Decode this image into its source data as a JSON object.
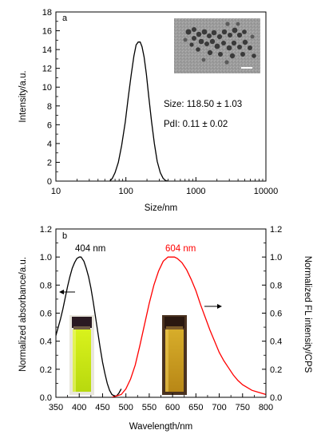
{
  "chart_data": [
    {
      "type": "line",
      "panel_label": "a",
      "xlabel": "Size/nm",
      "ylabel": "Intensity/a.u.",
      "x_scale": "log",
      "xlim": [
        10,
        10000
      ],
      "ylim": [
        0,
        18
      ],
      "x_ticks": [
        {
          "value": 10,
          "label": "10"
        },
        {
          "value": 100,
          "label": "100"
        },
        {
          "value": 1000,
          "label": "1000"
        },
        {
          "value": 10000,
          "label": "10000"
        }
      ],
      "y_ticks": [
        {
          "value": 0,
          "label": "0"
        },
        {
          "value": 2,
          "label": "2"
        },
        {
          "value": 4,
          "label": "4"
        },
        {
          "value": 6,
          "label": "6"
        },
        {
          "value": 8,
          "label": "8"
        },
        {
          "value": 10,
          "label": "10"
        },
        {
          "value": 12,
          "label": "12"
        },
        {
          "value": 14,
          "label": "14"
        },
        {
          "value": 16,
          "label": "16"
        },
        {
          "value": 18,
          "label": "18"
        }
      ],
      "series": [
        {
          "color": "#000000",
          "x": [
            59,
            64,
            70,
            78,
            87,
            98,
            108,
            119,
            130,
            140,
            150,
            160,
            170,
            182,
            196,
            212,
            232,
            255,
            280,
            310,
            340,
            370,
            400
          ],
          "y": [
            0,
            0.3,
            0.9,
            2.0,
            3.8,
            6.3,
            8.9,
            11.3,
            13.3,
            14.5,
            14.8,
            14.8,
            14.3,
            13.2,
            11.4,
            9.0,
            6.4,
            4.0,
            2.1,
            0.9,
            0.3,
            0.05,
            0
          ]
        }
      ],
      "annotations": [
        {
          "text": "Size: 118.50 ± 1.03"
        },
        {
          "text": "PdI: 0.11 ± 0.02"
        }
      ],
      "inset": "TEM image of nanoparticles"
    },
    {
      "type": "line",
      "panel_label": "b",
      "xlabel": "Wavelength/nm",
      "ylabel": "Normalized absorbance/a.u.",
      "y2label": "Normalized FL intensity/CPS",
      "xlim": [
        350,
        800
      ],
      "ylim": [
        0,
        1.2
      ],
      "y2lim": [
        0,
        1.2
      ],
      "x_ticks": [
        350,
        400,
        450,
        500,
        550,
        600,
        650,
        700,
        750,
        800
      ],
      "y_ticks": [
        "0.0",
        "0.2",
        "0.4",
        "0.6",
        "0.8",
        "1.0",
        "1.2"
      ],
      "series": [
        {
          "axis": "left",
          "color": "#000000",
          "peak_label": "404 nm",
          "x": [
            350,
            355,
            360,
            365,
            370,
            375,
            380,
            385,
            390,
            395,
            400,
            404,
            410,
            415,
            420,
            425,
            430,
            435,
            440,
            445,
            450,
            455,
            460,
            465,
            470,
            475,
            480,
            485,
            490
          ],
          "y": [
            0.44,
            0.5,
            0.56,
            0.63,
            0.71,
            0.79,
            0.86,
            0.92,
            0.96,
            0.99,
            1.0,
            1.0,
            0.97,
            0.92,
            0.86,
            0.78,
            0.68,
            0.57,
            0.46,
            0.35,
            0.25,
            0.17,
            0.1,
            0.05,
            0.02,
            0.01,
            0.01,
            0.03,
            0.06
          ]
        },
        {
          "axis": "right",
          "color": "#ff0000",
          "peak_label": "604 nm",
          "x": [
            470,
            480,
            490,
            500,
            510,
            520,
            530,
            540,
            550,
            560,
            570,
            580,
            590,
            600,
            604,
            610,
            620,
            630,
            640,
            650,
            660,
            670,
            680,
            690,
            700,
            710,
            720,
            730,
            740,
            750,
            760,
            770,
            780,
            790,
            800
          ],
          "y": [
            0.0,
            0.01,
            0.02,
            0.06,
            0.13,
            0.23,
            0.37,
            0.52,
            0.67,
            0.8,
            0.9,
            0.97,
            1.0,
            1.0,
            1.0,
            0.99,
            0.96,
            0.91,
            0.84,
            0.76,
            0.66,
            0.57,
            0.48,
            0.4,
            0.32,
            0.26,
            0.21,
            0.16,
            0.12,
            0.09,
            0.07,
            0.05,
            0.04,
            0.03,
            0.02
          ]
        }
      ],
      "insets": [
        "vial photo under daylight",
        "vial photo under UV light"
      ]
    }
  ],
  "colors": {
    "absorbance": "#000000",
    "fluorescence": "#ff0000"
  }
}
